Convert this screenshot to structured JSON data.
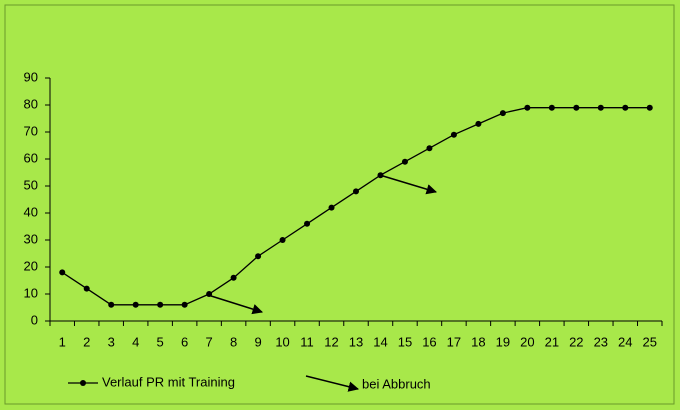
{
  "chart_data": {
    "type": "line",
    "categories": [
      1,
      2,
      3,
      4,
      5,
      6,
      7,
      8,
      9,
      10,
      11,
      12,
      13,
      14,
      15,
      16,
      17,
      18,
      19,
      20,
      21,
      22,
      23,
      24,
      25
    ],
    "series": [
      {
        "name": "Verlauf PR mit Training",
        "color": "#000000",
        "values": [
          18,
          12,
          6,
          6,
          6,
          6,
          10,
          16,
          24,
          30,
          36,
          42,
          48,
          54,
          59,
          64,
          69,
          73,
          77,
          79,
          79,
          79,
          79,
          79,
          79
        ]
      }
    ],
    "annotation": "bei Abbruch",
    "ylim": [
      0,
      90
    ],
    "yticks": [
      0,
      10,
      20,
      30,
      40,
      50,
      60,
      70,
      80,
      90
    ],
    "legend": "bottom-left"
  }
}
